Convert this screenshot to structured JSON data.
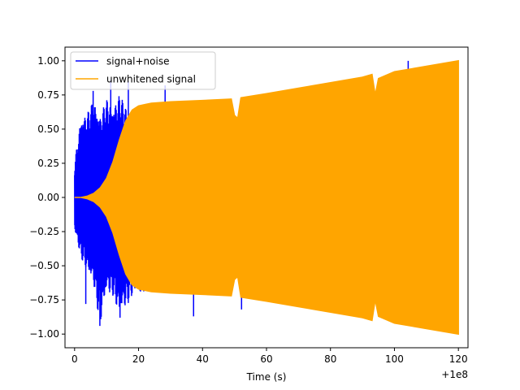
{
  "chart_data": {
    "type": "line",
    "title": "",
    "xlabel": "Time (s)",
    "ylabel": "",
    "x_offset_label": "+1e8",
    "xlim": [
      -3,
      123
    ],
    "ylim": [
      -1.1,
      1.1
    ],
    "x_ticks": [
      0,
      20,
      40,
      60,
      80,
      100,
      120
    ],
    "x_tick_labels": [
      "0",
      "20",
      "40",
      "60",
      "80",
      "100",
      "120"
    ],
    "y_ticks": [
      -1.0,
      -0.75,
      -0.5,
      -0.25,
      0.0,
      0.25,
      0.5,
      0.75,
      1.0
    ],
    "y_tick_labels": [
      "−1.00",
      "−0.75",
      "−0.50",
      "−0.25",
      "0.00",
      "0.25",
      "0.50",
      "0.75",
      "1.00"
    ],
    "grid": false,
    "legend_position": "top-left",
    "series": [
      {
        "name": "signal+noise",
        "color": "#0000ff",
        "envelope": {
          "x": [
            0,
            2,
            4,
            6,
            8,
            10,
            12,
            14,
            16,
            18,
            20,
            22
          ],
          "upper": [
            0.25,
            0.6,
            0.62,
            0.72,
            0.6,
            0.72,
            0.68,
            0.75,
            0.68,
            0.6,
            0.62,
            0.62
          ],
          "lower": [
            -0.25,
            -0.44,
            -0.55,
            -0.65,
            -0.94,
            -0.7,
            -0.72,
            -0.88,
            -0.8,
            -0.73,
            -0.72,
            -0.68
          ]
        },
        "spikes": [
          {
            "x": 3.5,
            "y": -0.78
          },
          {
            "x": 5.8,
            "y": 0.78
          },
          {
            "x": 7.9,
            "y": -0.94
          },
          {
            "x": 11.3,
            "y": 0.86
          },
          {
            "x": 14.2,
            "y": -0.88
          },
          {
            "x": 16.8,
            "y": 0.85
          },
          {
            "x": 28.3,
            "y": 0.82
          },
          {
            "x": 37.2,
            "y": -0.87
          },
          {
            "x": 52.2,
            "y": -0.82
          },
          {
            "x": 71.2,
            "y": -0.8
          },
          {
            "x": 104.3,
            "y": 1.0
          },
          {
            "x": 112.7,
            "y": 0.97
          },
          {
            "x": 115.5,
            "y": -0.86
          }
        ]
      },
      {
        "name": "unwhitened signal",
        "color": "#ffa500",
        "envelope": {
          "x": [
            0,
            2,
            4,
            6,
            8,
            10,
            12,
            14,
            16,
            18,
            20,
            22,
            24,
            30,
            40,
            49,
            50,
            51,
            52,
            60,
            70,
            80,
            90,
            93,
            94,
            95,
            100,
            110,
            120
          ],
          "upper": [
            0.0,
            0.0,
            0.01,
            0.03,
            0.07,
            0.14,
            0.26,
            0.42,
            0.56,
            0.64,
            0.67,
            0.68,
            0.69,
            0.7,
            0.71,
            0.72,
            0.6,
            0.58,
            0.73,
            0.76,
            0.8,
            0.84,
            0.88,
            0.9,
            0.75,
            0.87,
            0.92,
            0.96,
            1.0
          ],
          "lower": [
            0.0,
            0.0,
            -0.01,
            -0.03,
            -0.07,
            -0.14,
            -0.26,
            -0.42,
            -0.56,
            -0.64,
            -0.67,
            -0.68,
            -0.69,
            -0.7,
            -0.71,
            -0.72,
            -0.6,
            -0.58,
            -0.73,
            -0.76,
            -0.8,
            -0.84,
            -0.88,
            -0.9,
            -0.75,
            -0.87,
            -0.92,
            -0.96,
            -1.0
          ]
        }
      }
    ]
  }
}
